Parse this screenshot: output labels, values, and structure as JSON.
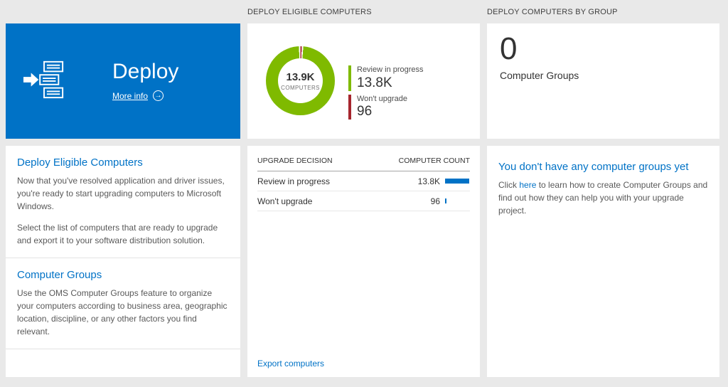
{
  "columns": {
    "middle_header": "DEPLOY ELIGIBLE COMPUTERS",
    "right_header": "DEPLOY COMPUTERS BY GROUP"
  },
  "deploy_tile": {
    "title": "Deploy",
    "more_info": "More info"
  },
  "left_panel": {
    "sections": [
      {
        "heading": "Deploy Eligible Computers",
        "paragraphs": [
          "Now that you've resolved application and driver issues, you're ready to start upgrading computers to Microsoft Windows.",
          "Select the list of computers that are ready to upgrade and export it to your software distribution solution."
        ]
      },
      {
        "heading": "Computer Groups",
        "paragraphs": [
          "Use the OMS Computer Groups feature to organize your computers according to business area, geographic location, discipline, or any other factors you find relevant."
        ]
      }
    ]
  },
  "donut_tile": {
    "center_value": "13.9K",
    "center_label": "COMPUTERS",
    "legend": [
      {
        "label": "Review in progress",
        "value": "13.8K",
        "color": "#7fba00"
      },
      {
        "label": "Won't upgrade",
        "value": "96",
        "color": "#a6262e"
      }
    ]
  },
  "chart_data": {
    "type": "pie",
    "title": "DEPLOY ELIGIBLE COMPUTERS",
    "categories": [
      "Review in progress",
      "Won't upgrade"
    ],
    "values": [
      13800,
      96
    ],
    "colors": [
      "#7fba00",
      "#a6262e"
    ],
    "center_value": "13.9K",
    "center_label": "COMPUTERS",
    "legend_position": "right"
  },
  "table": {
    "columns": [
      "UPGRADE DECISION",
      "COMPUTER COUNT"
    ],
    "rows": [
      {
        "label": "Review in progress",
        "display": "13.8K",
        "count": 13800
      },
      {
        "label": "Won't upgrade",
        "display": "96",
        "count": 96
      }
    ],
    "export_link": "Export computers",
    "bar_color": "#0072c6"
  },
  "groups_tile": {
    "count": "0",
    "label": "Computer Groups"
  },
  "groups_panel": {
    "heading": "You don't have any computer groups yet",
    "text_before": "Click ",
    "link": "here",
    "text_after": " to learn how to create Computer Groups and find out how they can help you with your upgrade project."
  },
  "colors": {
    "accent_blue": "#0072c6",
    "green": "#7fba00",
    "red": "#a6262e",
    "background": "#e9e9e9"
  }
}
